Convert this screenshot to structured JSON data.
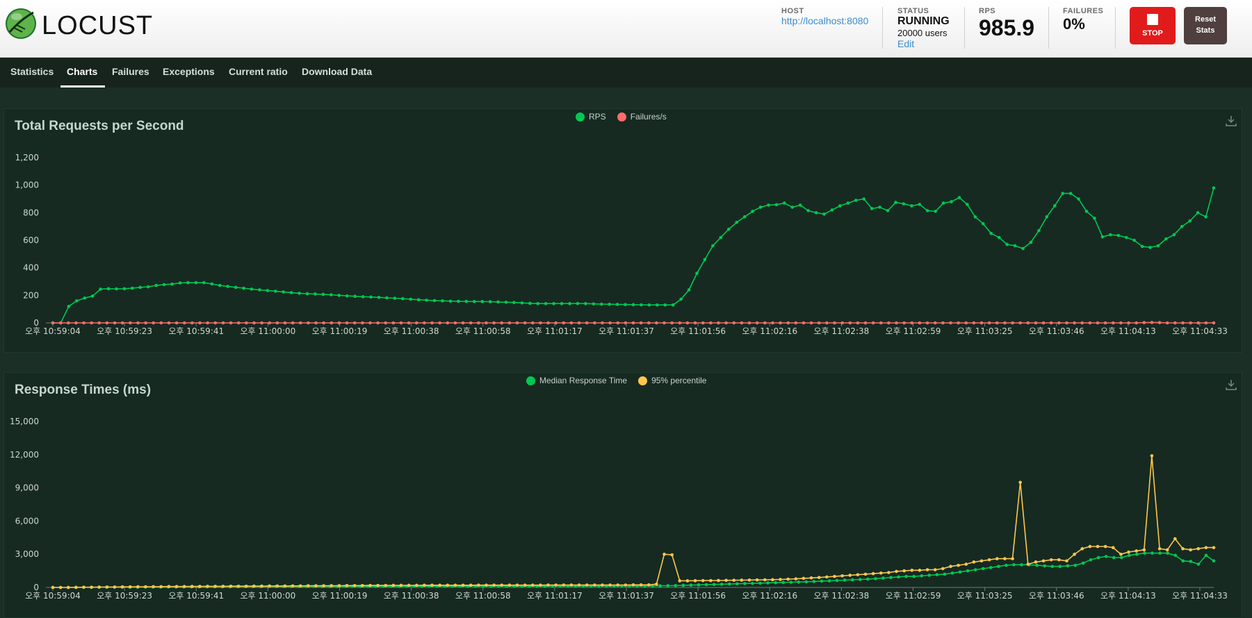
{
  "app": {
    "brand": "LOCUST"
  },
  "header": {
    "host_label": "HOST",
    "host_value": "http://localhost:8080",
    "status_label": "STATUS",
    "status_value": "RUNNING",
    "users": "20000 users",
    "edit": "Edit",
    "rps_label": "RPS",
    "rps_value": "985.9",
    "failures_label": "FAILURES",
    "failures_value": "0%",
    "stop_label": "STOP",
    "reset_line1": "Reset",
    "reset_line2": "Stats"
  },
  "tabs": [
    {
      "label": "Statistics"
    },
    {
      "label": "Charts",
      "active": true
    },
    {
      "label": "Failures"
    },
    {
      "label": "Exceptions"
    },
    {
      "label": "Current ratio"
    },
    {
      "label": "Download Data"
    }
  ],
  "colors": {
    "rps": "#00c853",
    "failures": "#ff6b6b",
    "median": "#00c853",
    "p95": "#ffc64d"
  },
  "chart_data": [
    {
      "type": "line",
      "title": "Total Requests per Second",
      "ylim": [
        0,
        1200
      ],
      "yticks": [
        "0",
        "200",
        "400",
        "600",
        "800",
        "1,000",
        "1,200"
      ],
      "xtick_labels": [
        "오후 10:59:04",
        "오후 10:59:23",
        "오후 10:59:41",
        "오후 11:00:00",
        "오후 11:00:19",
        "오후 11:00:38",
        "오후 11:00:58",
        "오후 11:01:17",
        "오후 11:01:37",
        "오후 11:01:56",
        "오후 11:02:16",
        "오후 11:02:38",
        "오후 11:02:59",
        "오후 11:03:25",
        "오후 11:03:46",
        "오후 11:04:13",
        "오후 11:04:33"
      ],
      "legend": "top-center",
      "series": [
        {
          "name": "RPS",
          "color": "#00c853",
          "values": [
            0,
            0,
            120,
            160,
            180,
            195,
            245,
            248,
            247,
            248,
            252,
            258,
            262,
            272,
            278,
            282,
            290,
            292,
            292,
            292,
            283,
            272,
            265,
            258,
            252,
            245,
            240,
            235,
            230,
            225,
            220,
            215,
            212,
            210,
            207,
            204,
            200,
            196,
            193,
            190,
            188,
            185,
            182,
            179,
            176,
            172,
            168,
            165,
            162,
            160,
            158,
            157,
            156,
            155,
            155,
            154,
            152,
            150,
            148,
            145,
            142,
            140,
            140,
            140,
            140,
            140,
            141,
            140,
            138,
            136,
            135,
            134,
            133,
            132,
            131,
            130,
            130,
            130,
            130,
            172,
            240,
            360,
            460,
            560,
            620,
            680,
            730,
            770,
            810,
            840,
            855,
            858,
            870,
            840,
            855,
            815,
            800,
            790,
            820,
            850,
            870,
            890,
            900,
            830,
            840,
            815,
            875,
            865,
            850,
            860,
            815,
            810,
            870,
            880,
            910,
            860,
            770,
            720,
            650,
            620,
            570,
            560,
            540,
            585,
            670,
            770,
            850,
            940,
            940,
            900,
            810,
            760,
            625,
            640,
            635,
            620,
            600,
            555,
            548,
            560,
            610,
            640,
            700,
            740,
            800,
            770,
            980
          ]
        },
        {
          "name": "Failures/s",
          "color": "#ff6b6b",
          "values": [
            0,
            0,
            0,
            0,
            0,
            0,
            0,
            0,
            0,
            0,
            0,
            0,
            0,
            0,
            0,
            0,
            0,
            0,
            0,
            0,
            0,
            0,
            0,
            0,
            0,
            0,
            0,
            0,
            0,
            0,
            0,
            0,
            0,
            0,
            0,
            0,
            0,
            0,
            0,
            0,
            0,
            0,
            0,
            0,
            0,
            0,
            0,
            0,
            0,
            0,
            0,
            0,
            0,
            0,
            0,
            0,
            0,
            0,
            0,
            0,
            0,
            0,
            0,
            0,
            0,
            0,
            0,
            0,
            0,
            0,
            0,
            0,
            0,
            0,
            0,
            0,
            0,
            0,
            0,
            0,
            0,
            0,
            0,
            0,
            0,
            0,
            0,
            0,
            0,
            0,
            0,
            0,
            0,
            0,
            0,
            0,
            0,
            0,
            0,
            0,
            0,
            0,
            0,
            0,
            0,
            0,
            0,
            0,
            0,
            0,
            0,
            0,
            0,
            0,
            0,
            0,
            0,
            0,
            0,
            0,
            0,
            0,
            0,
            0,
            0,
            0,
            0,
            0,
            0,
            0,
            0,
            0,
            0,
            0,
            0,
            0,
            0,
            0,
            0,
            0,
            0,
            2,
            3,
            2,
            0,
            0,
            0,
            0,
            0,
            0,
            0
          ]
        }
      ]
    },
    {
      "type": "line",
      "title": "Response Times (ms)",
      "ylim": [
        0,
        15000
      ],
      "yticks": [
        "0",
        "3,000",
        "6,000",
        "9,000",
        "12,000",
        "15,000"
      ],
      "xtick_labels": [
        "오후 10:59:04",
        "오후 10:59:23",
        "오후 10:59:41",
        "오후 11:00:00",
        "오후 11:00:19",
        "오후 11:00:38",
        "오후 11:00:58",
        "오후 11:01:17",
        "오후 11:01:37",
        "오후 11:01:56",
        "오후 11:02:16",
        "오후 11:02:38",
        "오후 11:02:59",
        "오후 11:03:25",
        "오후 11:03:46",
        "오후 11:04:13",
        "오후 11:04:33"
      ],
      "legend": "top-center",
      "series": [
        {
          "name": "Median Response Time",
          "color": "#00c853",
          "values": [
            0,
            0,
            0,
            0,
            10,
            10,
            20,
            20,
            20,
            30,
            30,
            30,
            40,
            40,
            40,
            50,
            50,
            50,
            50,
            60,
            60,
            60,
            60,
            60,
            70,
            70,
            70,
            70,
            80,
            80,
            80,
            80,
            80,
            90,
            90,
            90,
            90,
            90,
            100,
            100,
            100,
            100,
            100,
            100,
            100,
            100,
            110,
            110,
            110,
            110,
            110,
            110,
            110,
            110,
            110,
            120,
            120,
            120,
            120,
            120,
            120,
            120,
            120,
            120,
            120,
            130,
            130,
            130,
            130,
            130,
            130,
            130,
            130,
            130,
            140,
            140,
            140,
            140,
            140,
            150,
            160,
            170,
            190,
            210,
            230,
            250,
            270,
            290,
            310,
            330,
            350,
            370,
            390,
            410,
            430,
            450,
            470,
            490,
            510,
            540,
            570,
            600,
            630,
            660,
            690,
            720,
            750,
            800,
            850,
            900,
            950,
            1000,
            1000,
            1050,
            1100,
            1150,
            1200,
            1300,
            1400,
            1500,
            1600,
            1700,
            1800,
            1900,
            2000,
            2050,
            2050,
            2050,
            2000,
            1950,
            1900,
            1900,
            1950,
            2000,
            2200,
            2500,
            2700,
            2800,
            2700,
            2700,
            2900,
            3000,
            3100,
            3100,
            3100,
            3100,
            2900,
            2400,
            2350,
            2100,
            2900,
            2400
          ]
        },
        {
          "name": "95% percentile",
          "color": "#ffc64d",
          "values": [
            0,
            0,
            0,
            10,
            20,
            20,
            30,
            40,
            40,
            50,
            50,
            60,
            60,
            70,
            70,
            80,
            80,
            80,
            90,
            90,
            100,
            100,
            100,
            110,
            110,
            110,
            120,
            120,
            130,
            130,
            130,
            140,
            140,
            150,
            150,
            150,
            160,
            160,
            170,
            170,
            170,
            180,
            180,
            180,
            190,
            190,
            190,
            190,
            200,
            200,
            200,
            200,
            200,
            200,
            200,
            210,
            210,
            210,
            210,
            210,
            210,
            210,
            210,
            210,
            220,
            220,
            220,
            220,
            220,
            220,
            220,
            220,
            220,
            220,
            220,
            230,
            230,
            230,
            300,
            3000,
            2950,
            600,
            600,
            610,
            620,
            620,
            630,
            640,
            650,
            660,
            670,
            680,
            690,
            700,
            720,
            750,
            780,
            820,
            860,
            900,
            950,
            1000,
            1050,
            1100,
            1150,
            1200,
            1250,
            1300,
            1350,
            1450,
            1500,
            1550,
            1550,
            1600,
            1600,
            1700,
            1900,
            2000,
            2100,
            2300,
            2400,
            2500,
            2600,
            2600,
            2600,
            9500,
            2100,
            2300,
            2400,
            2500,
            2500,
            2400,
            3000,
            3500,
            3700,
            3700,
            3700,
            3600,
            3000,
            3200,
            3300,
            3400,
            11900,
            3500,
            3400,
            4400,
            3500,
            3400,
            3500,
            3600,
            3600
          ]
        }
      ]
    }
  ]
}
